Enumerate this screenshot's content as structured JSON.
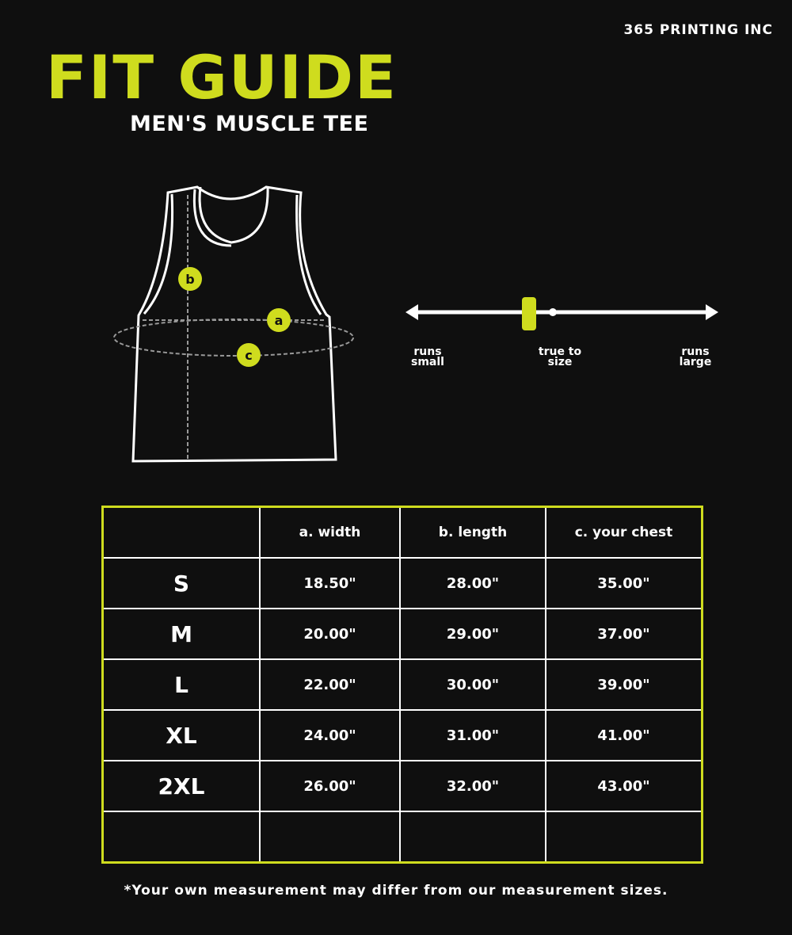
{
  "brand": "365 PRINTING INC",
  "title": "FIT GUIDE",
  "subtitle": "MEN'S MUSCLE TEE",
  "accent_color": "#cfdc1e",
  "diagram": {
    "markers": [
      "a",
      "b",
      "c"
    ]
  },
  "fit_scale": {
    "labels": [
      "runs small",
      "true to size",
      "runs large"
    ],
    "selected": "true to size",
    "position_fraction": 0.38
  },
  "table": {
    "headers": [
      "",
      "a. width",
      "b. length",
      "c. your chest"
    ],
    "rows": [
      [
        "S",
        "18.50\"",
        "28.00\"",
        "35.00\""
      ],
      [
        "M",
        "20.00\"",
        "29.00\"",
        "37.00\""
      ],
      [
        "L",
        "22.00\"",
        "30.00\"",
        "39.00\""
      ],
      [
        "XL",
        "24.00\"",
        "31.00\"",
        "41.00\""
      ],
      [
        "2XL",
        "26.00\"",
        "32.00\"",
        "43.00\""
      ],
      [
        "",
        "",
        "",
        ""
      ]
    ]
  },
  "footnote": "*Your own measurement may differ from our measurement sizes."
}
